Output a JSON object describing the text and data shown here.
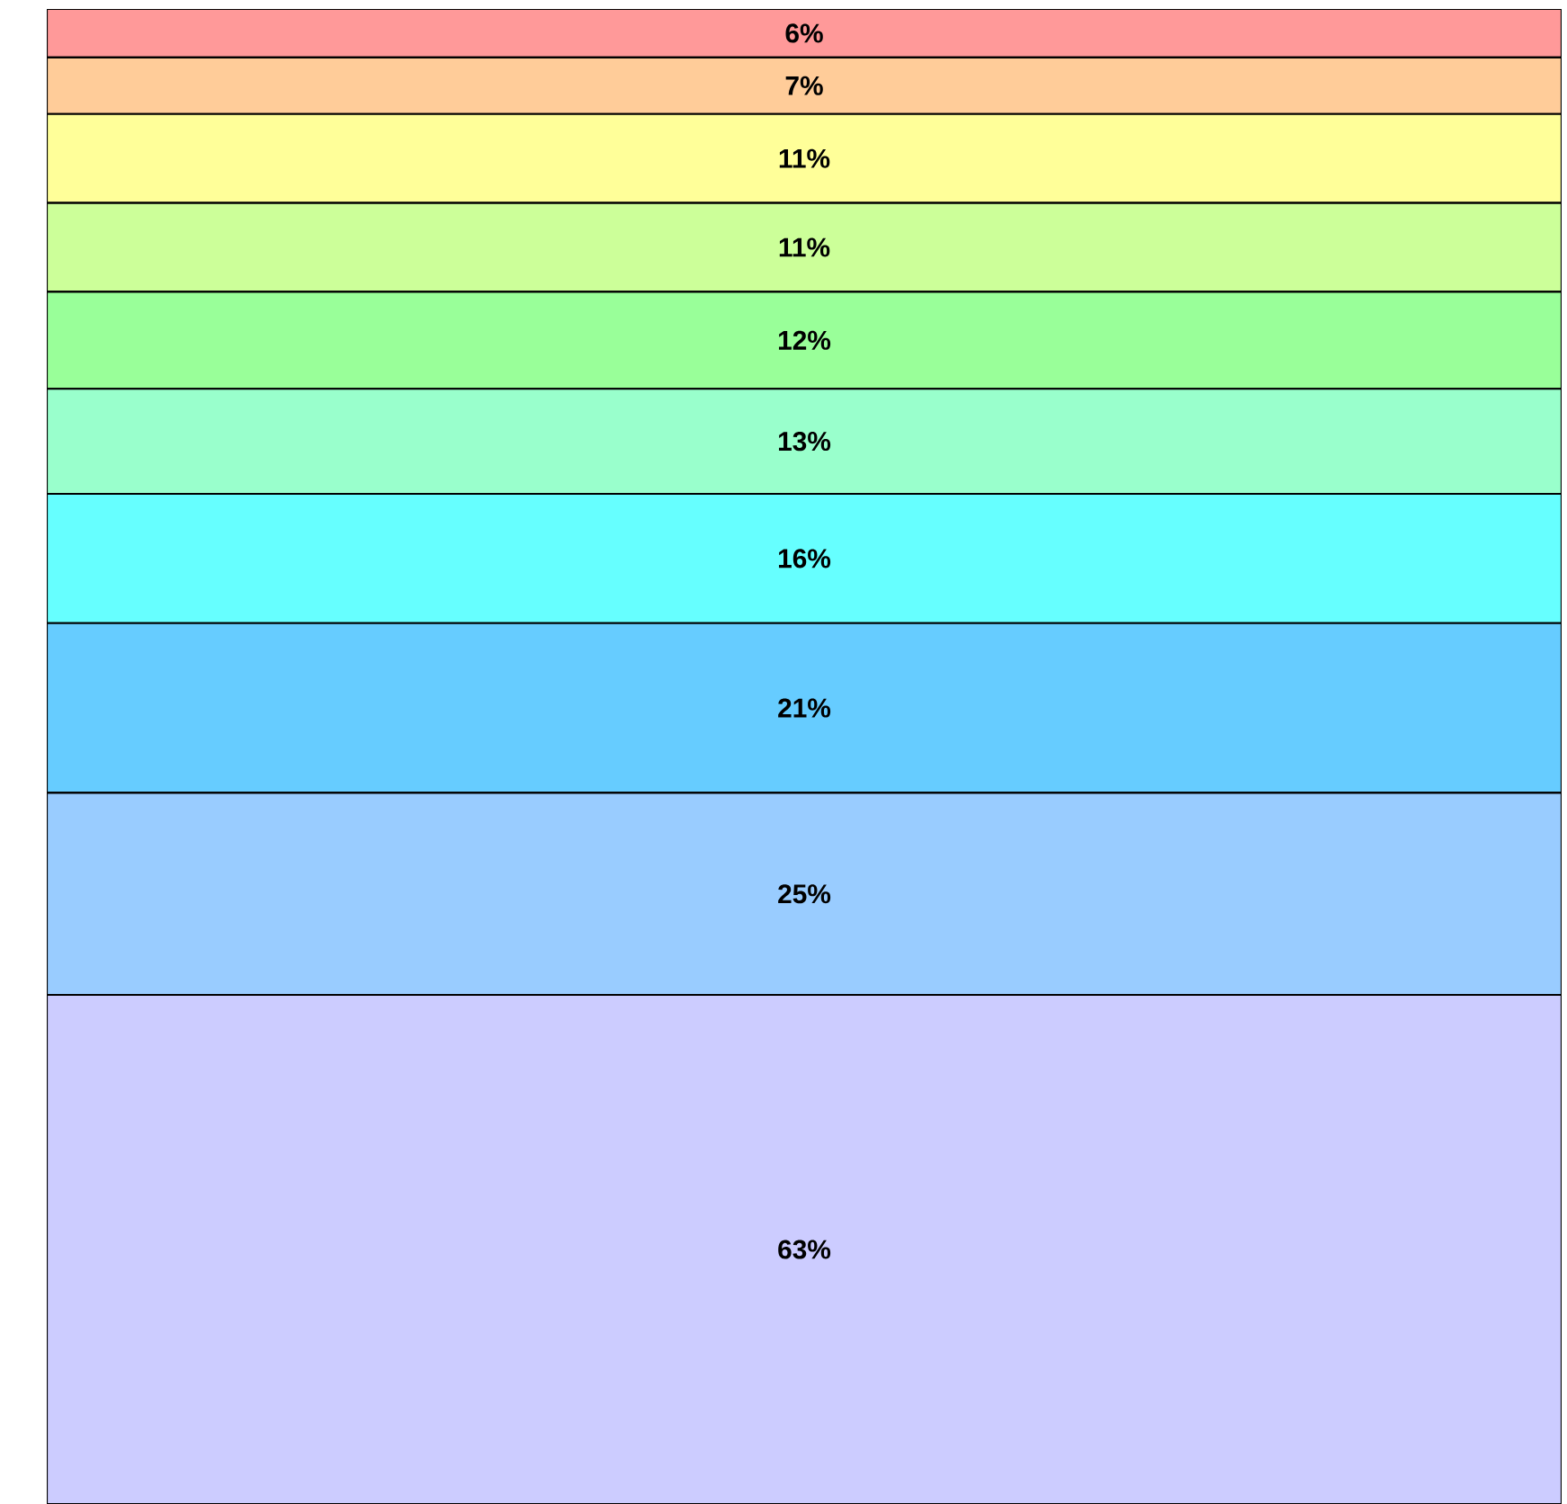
{
  "chart_data": {
    "type": "bar",
    "stacked": true,
    "categories": [
      null
    ],
    "series": [
      {
        "color": "#ccccff",
        "values": [
          63
        ],
        "value_labels": [
          "63%"
        ]
      },
      {
        "color": "#99ccff",
        "values": [
          25
        ],
        "value_labels": [
          "25%"
        ]
      },
      {
        "color": "#66ccff",
        "values": [
          21
        ],
        "value_labels": [
          "21%"
        ]
      },
      {
        "color": "#66ffff",
        "values": [
          16
        ],
        "value_labels": [
          "16%"
        ]
      },
      {
        "color": "#99ffcc",
        "values": [
          13
        ],
        "value_labels": [
          "13%"
        ]
      },
      {
        "color": "#99ff99",
        "values": [
          12
        ],
        "value_labels": [
          "12%"
        ]
      },
      {
        "color": "#ccff99",
        "values": [
          11
        ],
        "value_labels": [
          "11%"
        ]
      },
      {
        "color": "#ffff99",
        "values": [
          11
        ],
        "value_labels": [
          "11%"
        ]
      },
      {
        "color": "#ffcc99",
        "values": [
          7
        ],
        "value_labels": [
          "7%"
        ]
      },
      {
        "color": "#ff9999",
        "values": [
          6
        ],
        "value_labels": [
          "6%"
        ]
      }
    ]
  }
}
